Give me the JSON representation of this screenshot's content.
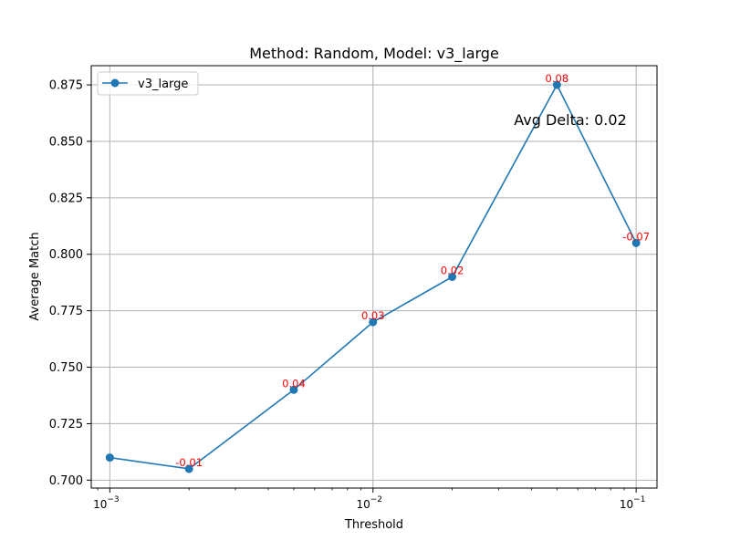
{
  "chart_data": {
    "type": "line",
    "title": "Method: Random, Model: v3_large",
    "xlabel": "Threshold",
    "ylabel": "Average Match",
    "x_scale": "log",
    "xlim": [
      0.00085,
      0.12
    ],
    "ylim": [
      0.6965,
      0.8835
    ],
    "grid": true,
    "legend_position": "upper left",
    "x_ticks": [
      {
        "value": 0.001,
        "label": "10"
      },
      {
        "value": 0.01,
        "label": "10"
      },
      {
        "value": 0.1,
        "label": "10"
      }
    ],
    "x_tick_exponents": [
      "−3",
      "−2",
      "−1"
    ],
    "y_ticks": [
      {
        "value": 0.7,
        "label": "0.700"
      },
      {
        "value": 0.725,
        "label": "0.725"
      },
      {
        "value": 0.75,
        "label": "0.750"
      },
      {
        "value": 0.775,
        "label": "0.775"
      },
      {
        "value": 0.8,
        "label": "0.800"
      },
      {
        "value": 0.825,
        "label": "0.825"
      },
      {
        "value": 0.85,
        "label": "0.850"
      },
      {
        "value": 0.875,
        "label": "0.875"
      }
    ],
    "series": [
      {
        "name": "v3_large",
        "color": "#1f77b4",
        "x": [
          0.001,
          0.002,
          0.005,
          0.01,
          0.02,
          0.05,
          0.1
        ],
        "y": [
          0.71,
          0.705,
          0.74,
          0.77,
          0.79,
          0.875,
          0.805
        ],
        "labels": [
          "",
          "-0.01",
          "0.04",
          "0.03",
          "0.02",
          "0.08",
          "-0.07"
        ]
      }
    ],
    "annotation": "Avg Delta: 0.02",
    "annotation_color": "#ff0000"
  }
}
